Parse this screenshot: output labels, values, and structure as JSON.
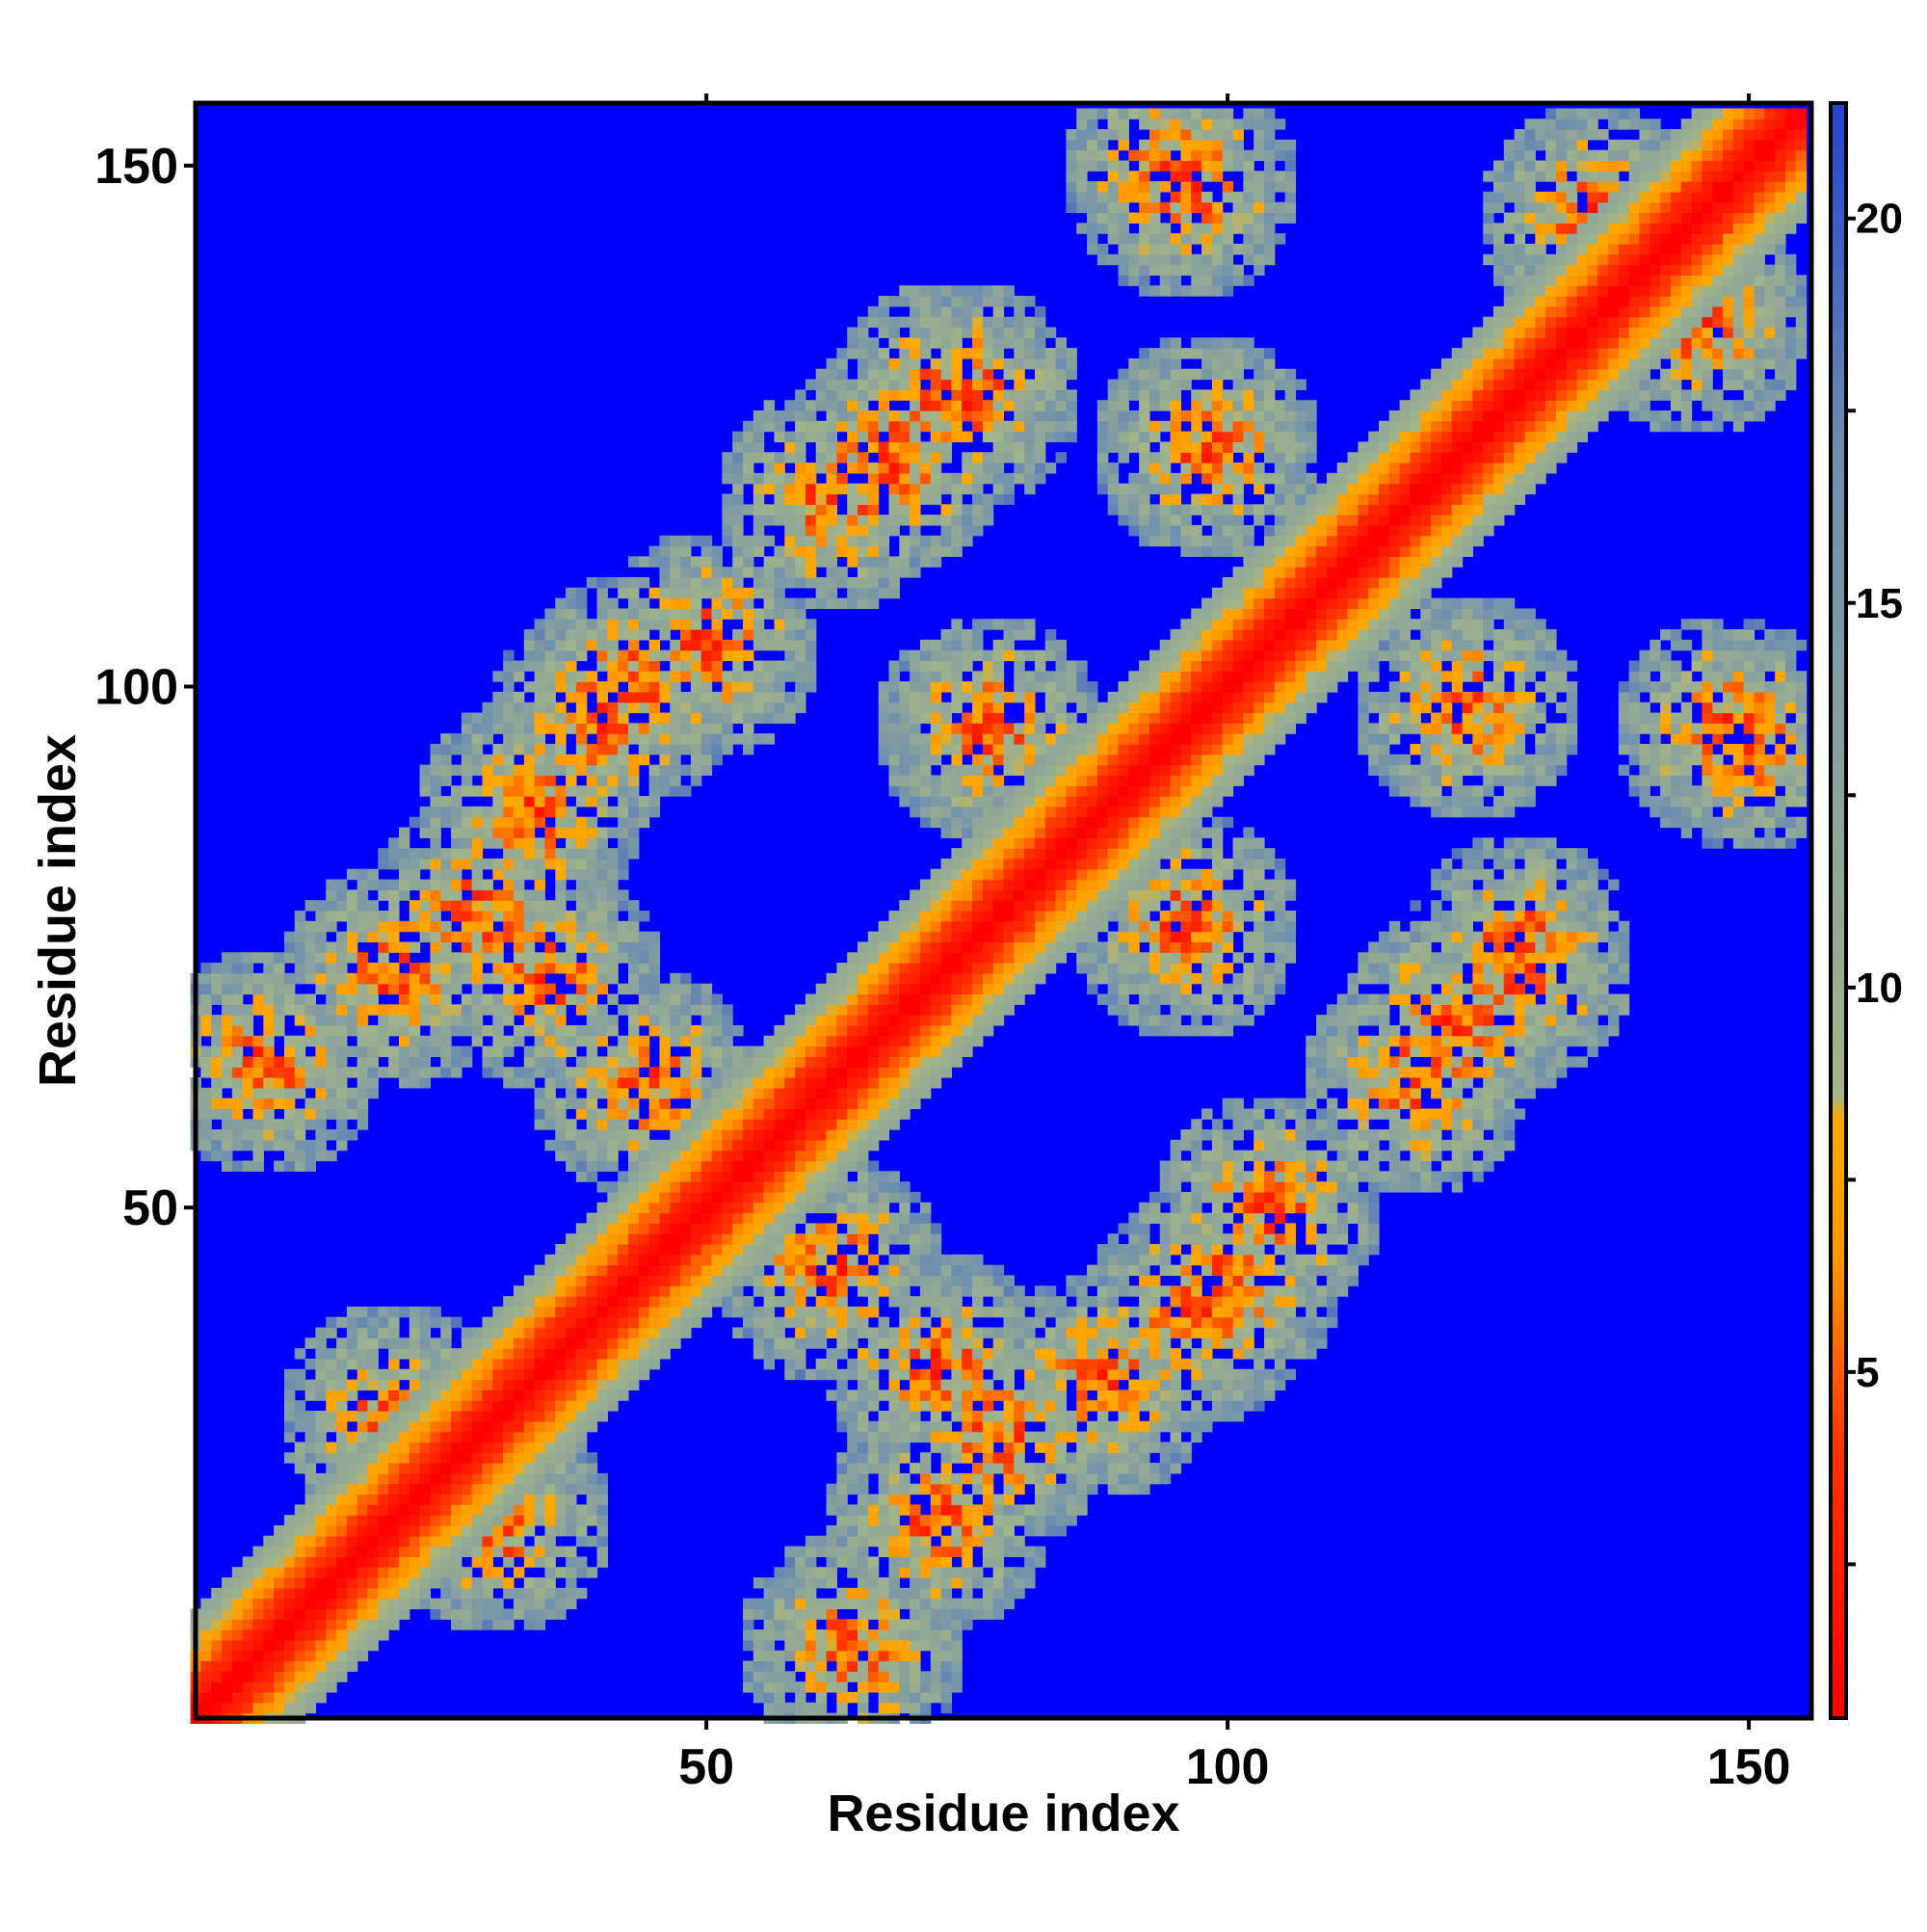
{
  "chart_data": {
    "type": "heatmap",
    "title": "",
    "xlabel": "Residue index",
    "ylabel": "Residue index",
    "n_residues": 155,
    "xlim": [
      1,
      156
    ],
    "ylim": [
      1,
      156
    ],
    "x_ticks": [
      50,
      100,
      150
    ],
    "y_ticks": [
      50,
      100,
      150
    ],
    "colorbar": {
      "ticks": [
        5,
        10,
        15,
        20
      ],
      "range": [
        0.5,
        21.5
      ],
      "stops": [
        {
          "value": 0.5,
          "color": "#ff0000"
        },
        {
          "value": 4.0,
          "color": "#ff3300"
        },
        {
          "value": 6.5,
          "color": "#ff9900"
        },
        {
          "value": 8.3,
          "color": "#ffaa00"
        },
        {
          "value": 8.6,
          "color": "#a2b48a"
        },
        {
          "value": 12.0,
          "color": "#8ea59a"
        },
        {
          "value": 17.0,
          "color": "#6c8db0"
        },
        {
          "value": 21.5,
          "color": "#2244cc"
        }
      ]
    },
    "background_color": "#0000ff",
    "description_of_contacts": {
      "diagonal_band": "distance increases from ~0 on the main diagonal to ~12 at |i-j|=10",
      "off_diagonal_contact_regions": [
        {
          "x": 8,
          "y": 64
        },
        {
          "x": 28,
          "y": 78
        },
        {
          "x": 40,
          "y": 97
        },
        {
          "x": 50,
          "y": 104
        },
        {
          "x": 68,
          "y": 122
        },
        {
          "x": 73,
          "y": 128
        },
        {
          "x": 96,
          "y": 148
        },
        {
          "x": 30,
          "y": 20
        },
        {
          "x": 62,
          "y": 44
        },
        {
          "x": 72,
          "y": 20
        },
        {
          "x": 72,
          "y": 35
        },
        {
          "x": 88,
          "y": 33
        },
        {
          "x": 100,
          "y": 43
        },
        {
          "x": 96,
          "y": 77
        },
        {
          "x": 118,
          "y": 62
        },
        {
          "x": 128,
          "y": 75
        },
        {
          "x": 123,
          "y": 98
        },
        {
          "x": 150,
          "y": 95
        },
        {
          "x": 135,
          "y": 145
        }
      ]
    }
  }
}
